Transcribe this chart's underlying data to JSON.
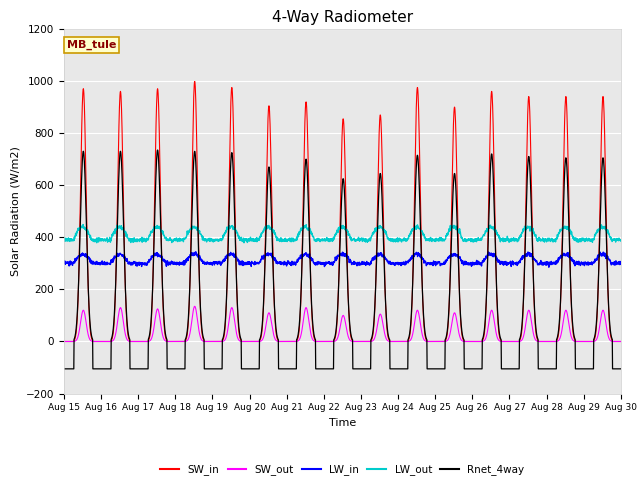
{
  "title": "4-Way Radiometer",
  "xlabel": "Time",
  "ylabel": "Solar Radiation (W/m2)",
  "ylim": [
    -200,
    1200
  ],
  "yticks": [
    -200,
    0,
    200,
    400,
    600,
    800,
    1000,
    1200
  ],
  "xtick_labels": [
    "Aug 15",
    "Aug 16",
    "Aug 17",
    "Aug 18",
    "Aug 19",
    "Aug 20",
    "Aug 21",
    "Aug 22",
    "Aug 23",
    "Aug 24",
    "Aug 25",
    "Aug 26",
    "Aug 27",
    "Aug 28",
    "Aug 29",
    "Aug 30"
  ],
  "annotation_text": "MB_tule",
  "annotation_bg": "#ffffcc",
  "annotation_border": "#cc9900",
  "outer_bg": "#ffffff",
  "plot_bg": "#e8e8e8",
  "colors": {
    "SW_in": "#ff0000",
    "SW_out": "#ff00ff",
    "LW_in": "#0000ff",
    "LW_out": "#00cccc",
    "Rnet_4way": "#000000"
  },
  "legend_entries": [
    "SW_in",
    "SW_out",
    "LW_in",
    "LW_out",
    "Rnet_4way"
  ],
  "num_days": 15,
  "SW_in_peaks": [
    970,
    960,
    970,
    998,
    975,
    905,
    920,
    855,
    870,
    975,
    900,
    960,
    940,
    940,
    940
  ],
  "SW_out_peaks": [
    120,
    130,
    125,
    135,
    130,
    110,
    130,
    100,
    105,
    120,
    110,
    120,
    120,
    120,
    120
  ],
  "LW_in_base": 300,
  "LW_in_amplitude": 35,
  "LW_out_base": 390,
  "LW_out_amplitude": 50,
  "Rnet_peaks": [
    730,
    730,
    735,
    730,
    725,
    670,
    700,
    625,
    645,
    715,
    645,
    720,
    710,
    705,
    705
  ],
  "Rnet_night": -105
}
